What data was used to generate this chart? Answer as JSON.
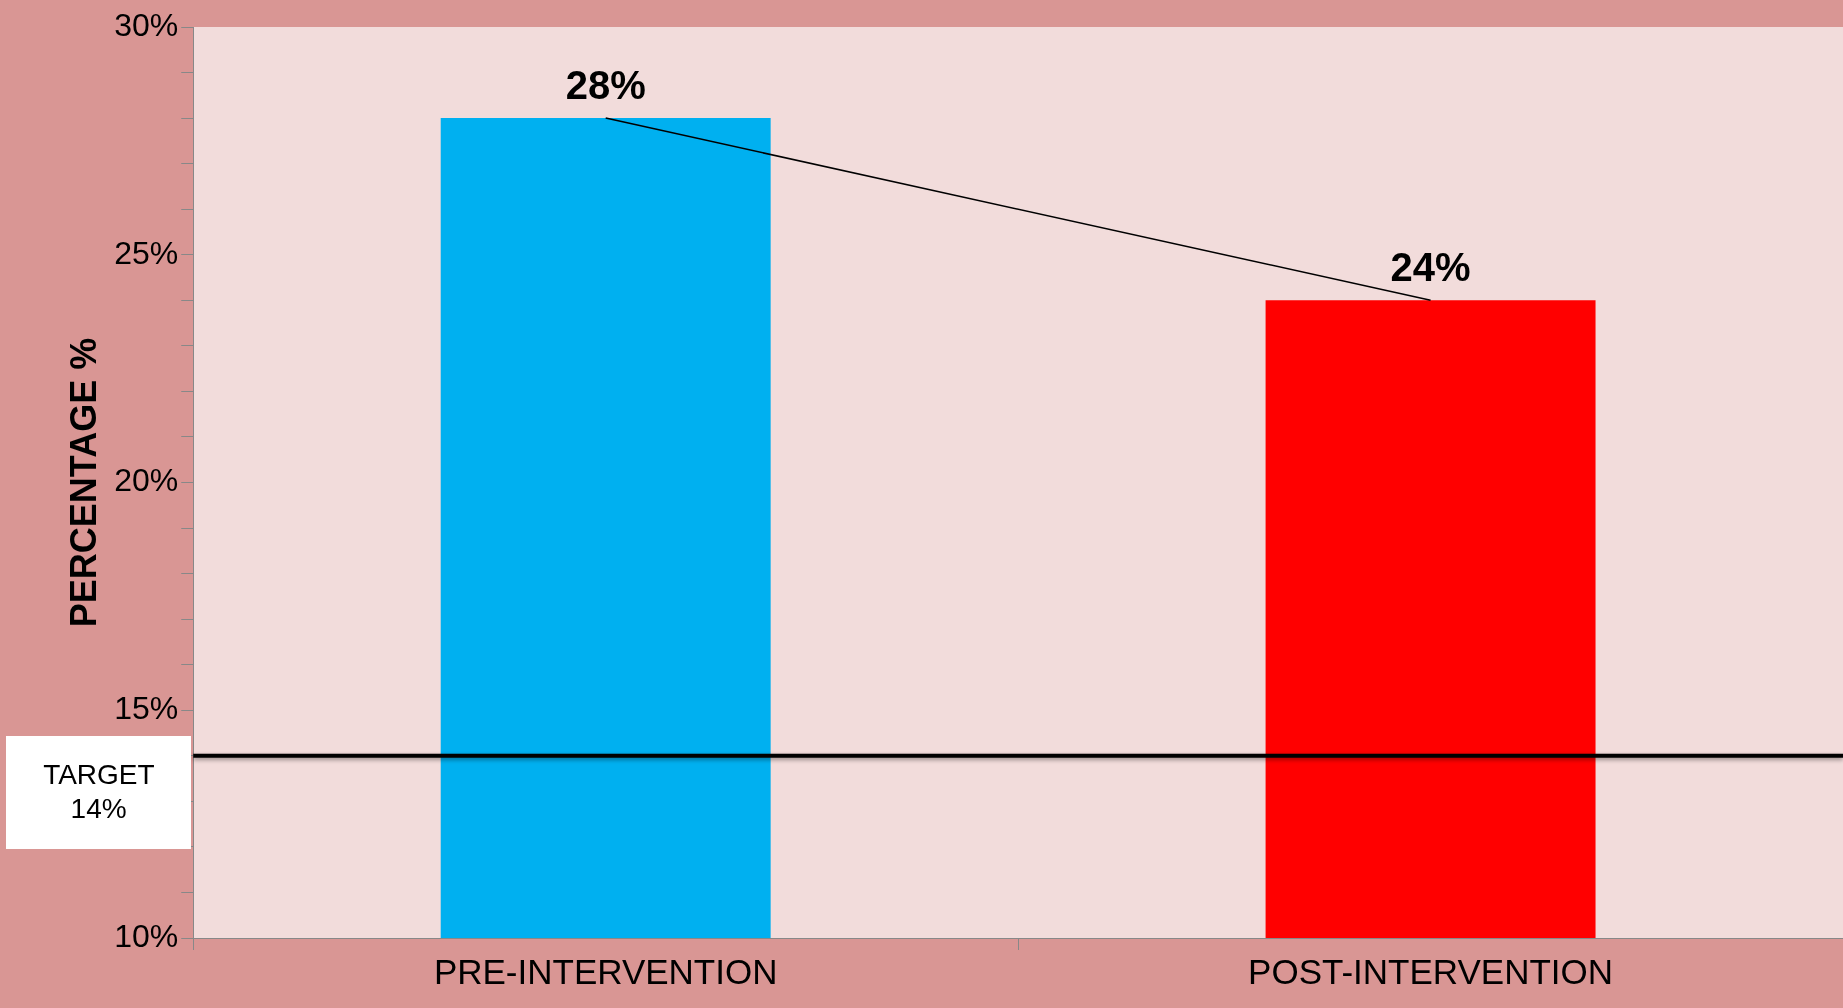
{
  "chart_data": {
    "type": "bar",
    "ylabel": "PERCENTAGE %",
    "categories": [
      "PRE-INTERVENTION",
      "POST-INTERVENTION"
    ],
    "series": [
      {
        "values": [
          28,
          24
        ],
        "value_labels": [
          "28%",
          "24%"
        ],
        "colors": [
          "#00b0f0",
          "#ff0000"
        ]
      },
      {
        "type": "line",
        "values": [
          28,
          24
        ],
        "color": "#000000"
      }
    ],
    "ylim": [
      10,
      30
    ],
    "yticks": [
      {
        "value": 10,
        "label": "10%"
      },
      {
        "value": 11,
        "label": null
      },
      {
        "value": 12,
        "label": null
      },
      {
        "value": 13,
        "label": null
      },
      {
        "value": 14,
        "label": null
      },
      {
        "value": 15,
        "label": "15%"
      },
      {
        "value": 16,
        "label": null
      },
      {
        "value": 17,
        "label": null
      },
      {
        "value": 18,
        "label": null
      },
      {
        "value": 19,
        "label": null
      },
      {
        "value": 20,
        "label": "20%"
      },
      {
        "value": 21,
        "label": null
      },
      {
        "value": 22,
        "label": null
      },
      {
        "value": 23,
        "label": null
      },
      {
        "value": 24,
        "label": null
      },
      {
        "value": 25,
        "label": "25%"
      },
      {
        "value": 26,
        "label": null
      },
      {
        "value": 27,
        "label": null
      },
      {
        "value": 28,
        "label": null
      },
      {
        "value": 29,
        "label": null
      },
      {
        "value": 30,
        "label": "30%"
      }
    ],
    "ref_lines": [
      {
        "axis": "y",
        "value": 14,
        "label": "TARGET 14%",
        "color": "#000000"
      }
    ],
    "marker": "none",
    "grid": false,
    "legend": false
  }
}
